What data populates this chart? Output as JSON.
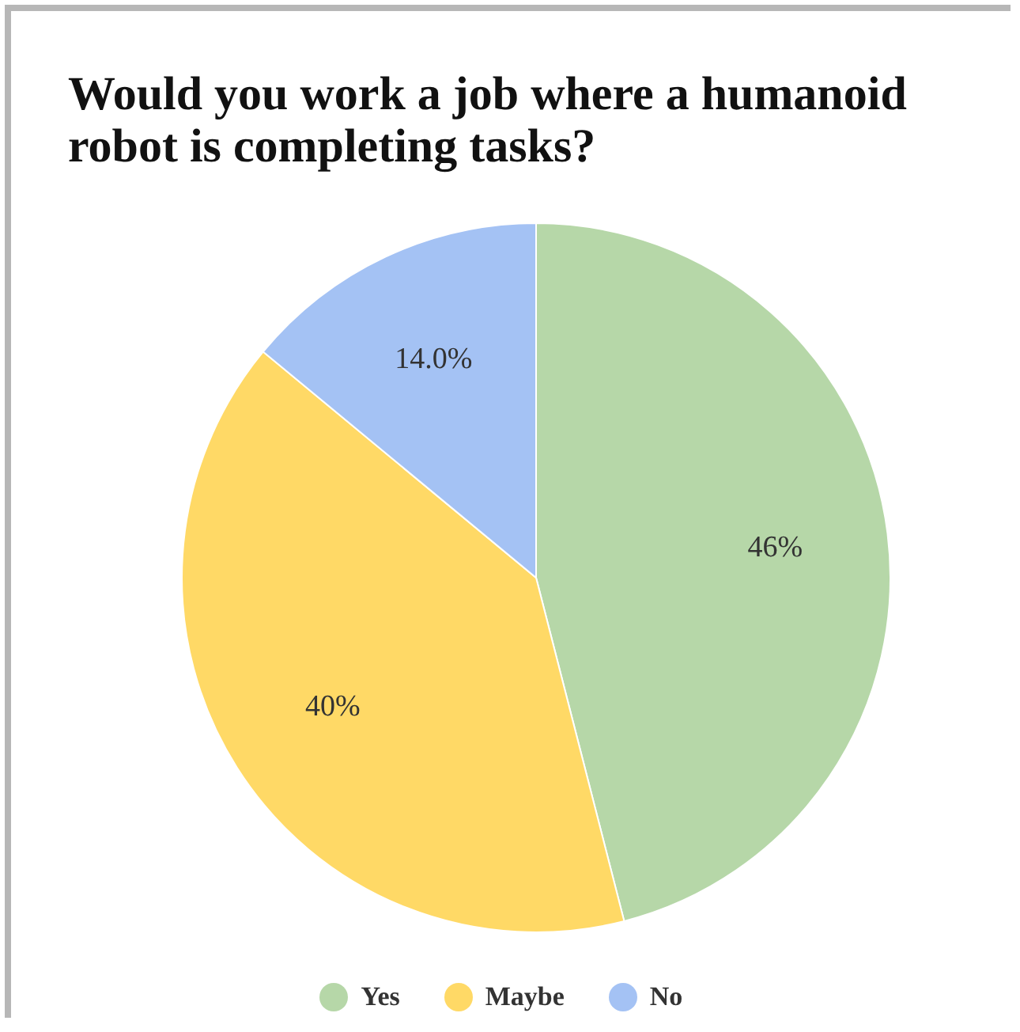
{
  "chart_data": {
    "type": "pie",
    "title": "Would you work a job where a humanoid robot is completing tasks?",
    "categories": [
      "Yes",
      "Maybe",
      "No"
    ],
    "values": [
      46,
      40,
      14
    ],
    "value_labels": [
      "46%",
      "40%",
      "14.0%"
    ],
    "colors": [
      "#b6d7a8",
      "#ffd966",
      "#a4c2f4"
    ],
    "legend": "bottom"
  }
}
